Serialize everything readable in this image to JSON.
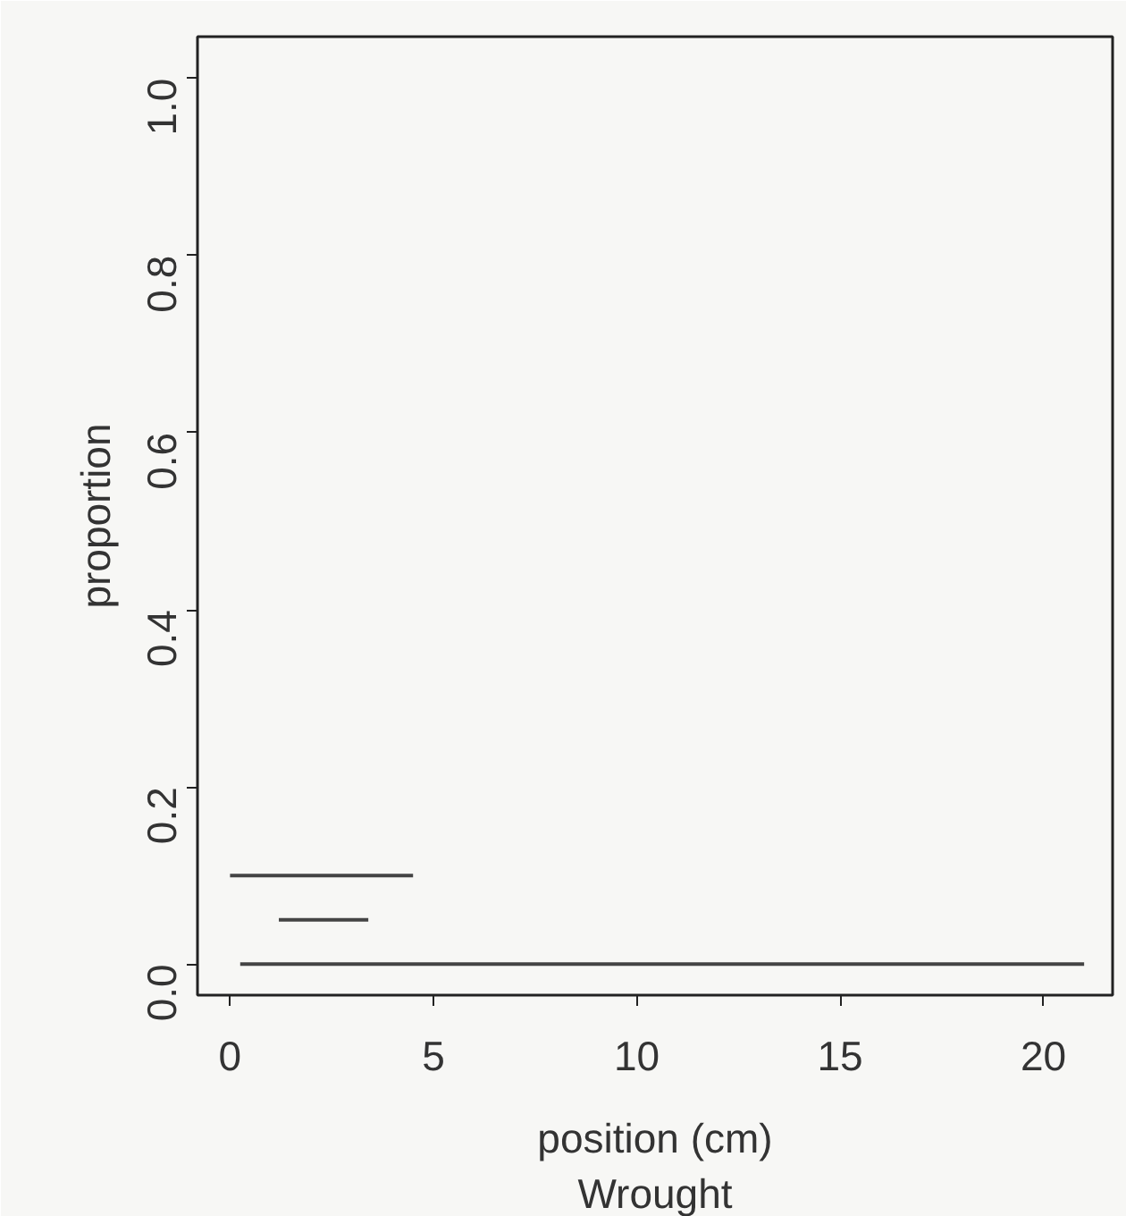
{
  "chart_data": {
    "type": "line",
    "xlabel": "position (cm)",
    "subtitle": "Wrought",
    "ylabel": "proportion",
    "xlim": [
      -0.8,
      21.7
    ],
    "ylim": [
      -0.035,
      1.047
    ],
    "xticks": [
      0,
      5,
      10,
      15,
      20
    ],
    "yticks": [
      {
        "value": 0,
        "label": "0.0"
      },
      0.2,
      0.4,
      0.6,
      0.8,
      {
        "value": 1,
        "label": "1.0"
      }
    ],
    "series": [
      {
        "color": "#444444",
        "x": [
          0,
          4.5
        ],
        "values": [
          0.1,
          0.1
        ]
      },
      {
        "color": "#444444",
        "x": [
          1.2,
          3.4
        ],
        "values": [
          0.05,
          0.05
        ]
      },
      {
        "color": "#444444",
        "x": [
          0.25,
          21
        ],
        "values": [
          0.0,
          0.0
        ]
      }
    ],
    "grid": false
  }
}
